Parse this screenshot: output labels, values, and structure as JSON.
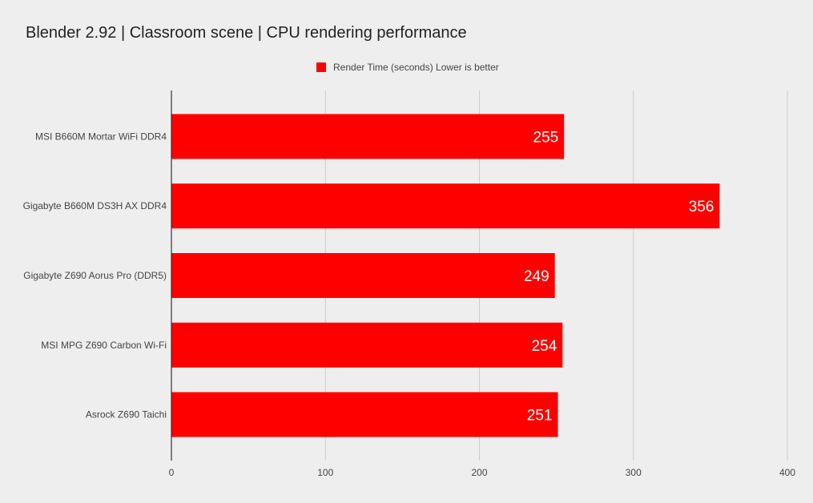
{
  "chart_data": {
    "type": "bar",
    "orientation": "horizontal",
    "title": "Blender 2.92 | Classroom scene | CPU rendering performance",
    "categories": [
      "MSI B660M Mortar WiFi DDR4",
      "Gigabyte B660M DS3H AX DDR4",
      "Gigabyte Z690 Aorus Pro (DDR5)",
      "MSI MPG Z690 Carbon Wi-Fi",
      "Asrock Z690 Taichi"
    ],
    "series": [
      {
        "name": "Render Time (seconds) Lower is better",
        "values": [
          255,
          356,
          249,
          254,
          251
        ],
        "color": "#ff0000"
      }
    ],
    "data_labels": [
      "255",
      "356",
      "249",
      "254",
      "251"
    ],
    "xlabel": "",
    "ylabel": "",
    "xlim": [
      0,
      400
    ],
    "xticks": [
      "0",
      "100",
      "200",
      "300",
      "400"
    ],
    "grid": "vertical",
    "legend_position": "top-center",
    "colors": {
      "background": "#eeeeee",
      "bar": "#ff0000",
      "grid": "#cccccc",
      "axis": "#333333",
      "data_label": "#ffffff",
      "text": "#444444"
    }
  }
}
